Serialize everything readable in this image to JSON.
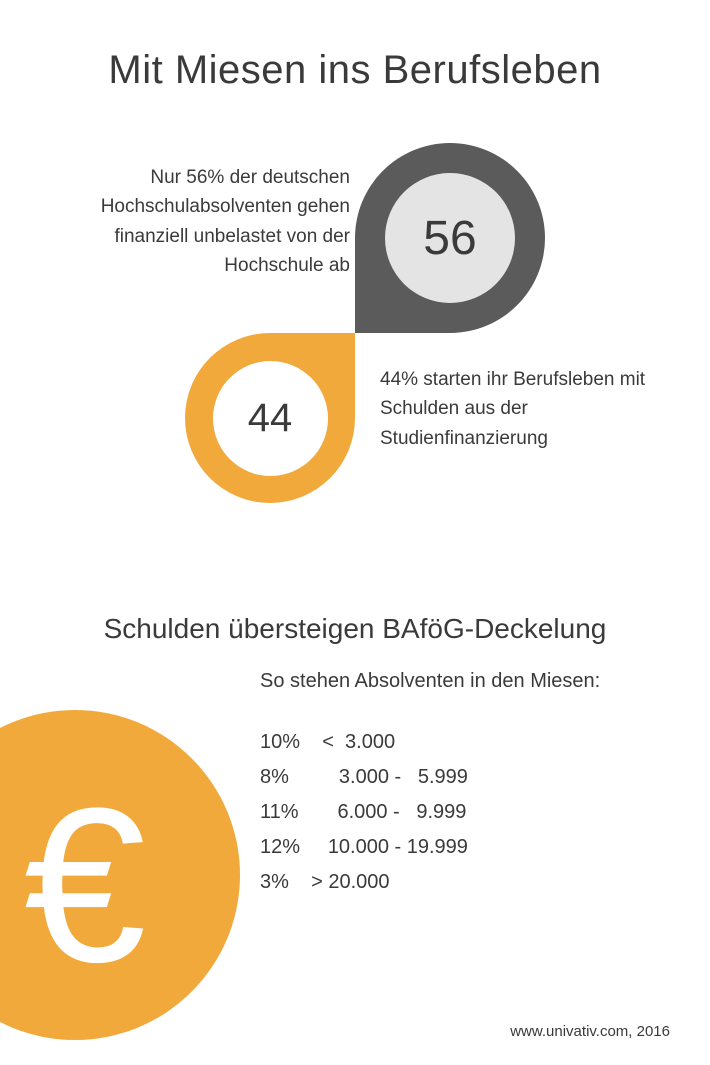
{
  "title": "Mit Miesen ins Berufsleben",
  "colors": {
    "grey_dark": "#5b5b5b",
    "grey_light": "#e4e4e4",
    "orange": "#f2a93b",
    "text": "#3a3a3a",
    "white": "#ffffff"
  },
  "stat56": {
    "value": "56",
    "text": "Nur 56% der deutschen Hochschulabsolventen gehen finanziell unbelastet von der Hochschule ab"
  },
  "stat44": {
    "value": "44",
    "text": "44% starten ihr Berufsleben mit Schulden aus der Studienfinanzierung"
  },
  "subtitle": "Schulden übersteigen BAföG-Deckelung",
  "euro_symbol": "€",
  "table": {
    "heading": "So stehen Absolventen in den Miesen:",
    "rows": [
      "10%    <  3.000",
      "8%         3.000 -   5.999",
      "11%       6.000 -   9.999",
      "12%     10.000 - 19.999",
      "3%    > 20.000"
    ]
  },
  "footer": "www.univativ.com, 2016"
}
